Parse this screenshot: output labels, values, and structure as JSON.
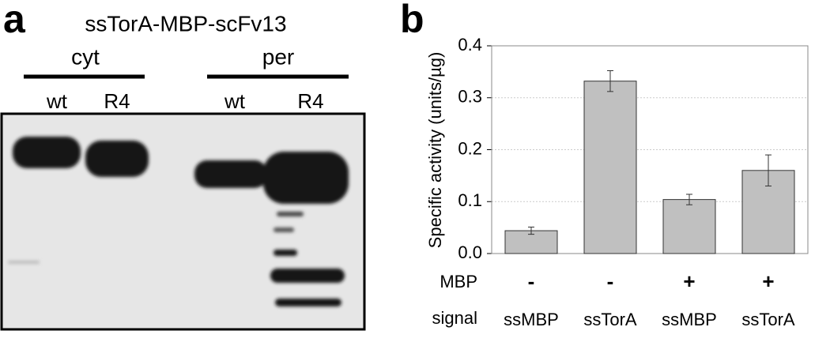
{
  "blot": {
    "panel_label": "a",
    "title": "ssTorA-MBP-scFv13",
    "groups": [
      {
        "label": "cyt",
        "lanes": [
          "wt",
          "R4"
        ]
      },
      {
        "label": "per",
        "lanes": [
          "wt",
          "R4"
        ]
      }
    ]
  },
  "chart_data": {
    "type": "bar",
    "panel_label": "b",
    "ylabel": "Specific activity (units/µg)",
    "categories": [
      "ssMBP",
      "ssTorA",
      "ssMBP",
      "ssTorA"
    ],
    "category_rows": [
      {
        "name": "MBP",
        "labels": [
          "-",
          "-",
          "+",
          "+"
        ]
      },
      {
        "name": "signal",
        "labels": [
          "ssMBP",
          "ssTorA",
          "ssMBP",
          "ssTorA"
        ]
      }
    ],
    "values": [
      0.044,
      0.332,
      0.104,
      0.16
    ],
    "errors": [
      0.007,
      0.02,
      0.01,
      0.03
    ],
    "color": "#c0c0c0",
    "ylim": [
      0,
      0.4
    ],
    "yticks": [
      {
        "value": 0,
        "label": "0.0"
      },
      0.1,
      0.2,
      0.3,
      0.4
    ],
    "grid": true
  }
}
